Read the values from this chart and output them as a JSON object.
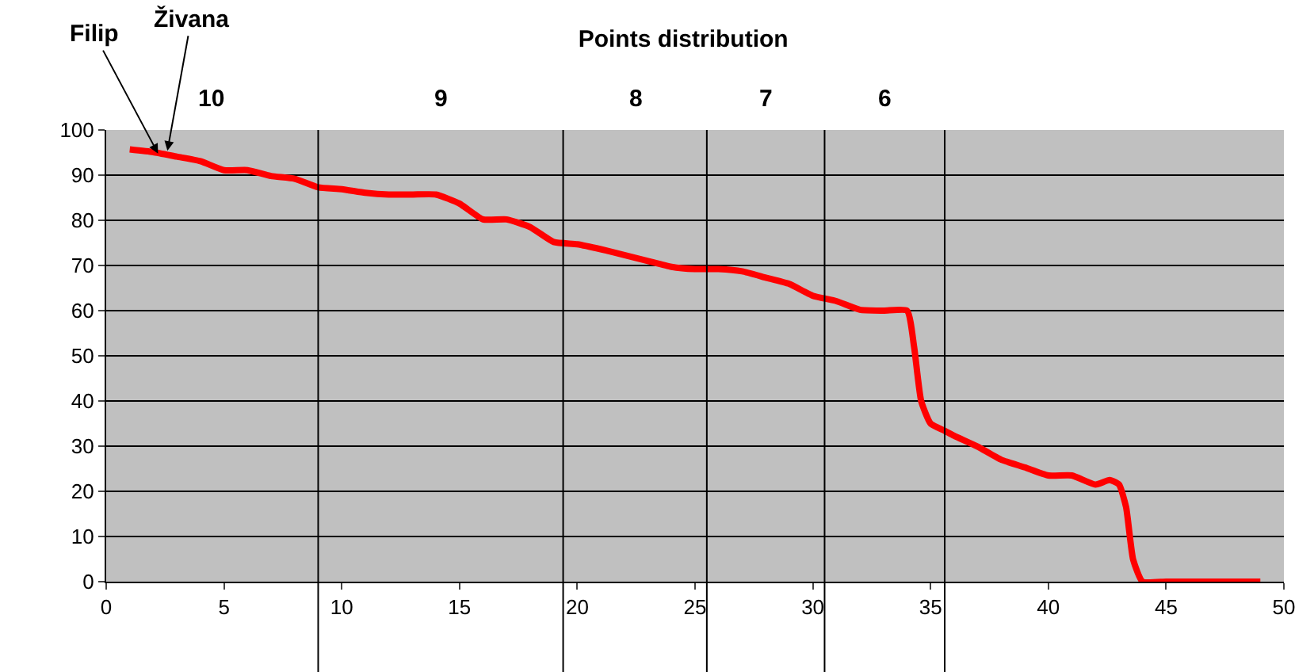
{
  "chart_data": {
    "type": "line",
    "title": "Points distribution",
    "x": [
      1,
      2,
      3,
      4,
      5,
      6,
      7,
      8,
      9,
      10,
      11,
      12,
      13,
      14,
      15,
      16,
      17,
      18,
      19,
      20,
      21,
      22,
      23,
      24,
      25,
      26,
      27,
      28,
      29,
      30,
      31,
      32,
      33,
      34,
      34.3,
      34.6,
      35,
      35.6,
      36,
      37,
      38,
      39,
      40,
      41,
      42,
      42.6,
      43,
      43.3,
      43.6,
      44,
      45,
      46,
      47,
      48,
      49
    ],
    "series": [
      {
        "color": "#ff0000",
        "values": [
          95.7,
          95.1,
          94.1,
          93.1,
          91.1,
          91.1,
          89.8,
          89.2,
          87.3,
          86.9,
          86.1,
          85.7,
          85.7,
          85.7,
          83.7,
          80.2,
          80.2,
          78.5,
          75.2,
          74.7,
          73.6,
          72.3,
          71,
          69.7,
          69.2,
          69.2,
          68.7,
          67.3,
          65.9,
          63.3,
          62.1,
          60.2,
          60,
          60,
          52,
          40,
          35,
          33.4,
          32.3,
          29.9,
          27,
          25.3,
          23.5,
          23.5,
          21.5,
          22.5,
          21.5,
          16.5,
          4.9,
          0,
          0,
          0,
          0,
          0,
          0
        ]
      }
    ],
    "xlim": [
      0,
      50
    ],
    "xticks": [
      0,
      5,
      10,
      15,
      20,
      25,
      30,
      35,
      40,
      45,
      50
    ],
    "ylim": [
      0,
      100
    ],
    "yticks": [
      0,
      10,
      20,
      30,
      40,
      50,
      60,
      70,
      80,
      90,
      100
    ],
    "grid": "y",
    "marker": "none",
    "line_style": "solid",
    "ref_lines": [
      {
        "axis": "x",
        "value": 9,
        "label": null,
        "color": "#000000"
      },
      {
        "axis": "x",
        "value": 19.4,
        "label": null,
        "color": "#000000"
      },
      {
        "axis": "x",
        "value": 25.5,
        "label": null,
        "color": "#000000"
      },
      {
        "axis": "x",
        "value": 30.5,
        "label": null,
        "color": "#000000"
      },
      {
        "axis": "x",
        "value": 35.6,
        "label": null,
        "color": "#000000"
      }
    ],
    "annotations": [
      {
        "text": "Filip",
        "x": 2.2,
        "y": 94.8
      },
      {
        "text": "Živana",
        "x": 2.6,
        "y": 95.4
      },
      "10",
      "9",
      "8",
      "7",
      "6"
    ]
  }
}
